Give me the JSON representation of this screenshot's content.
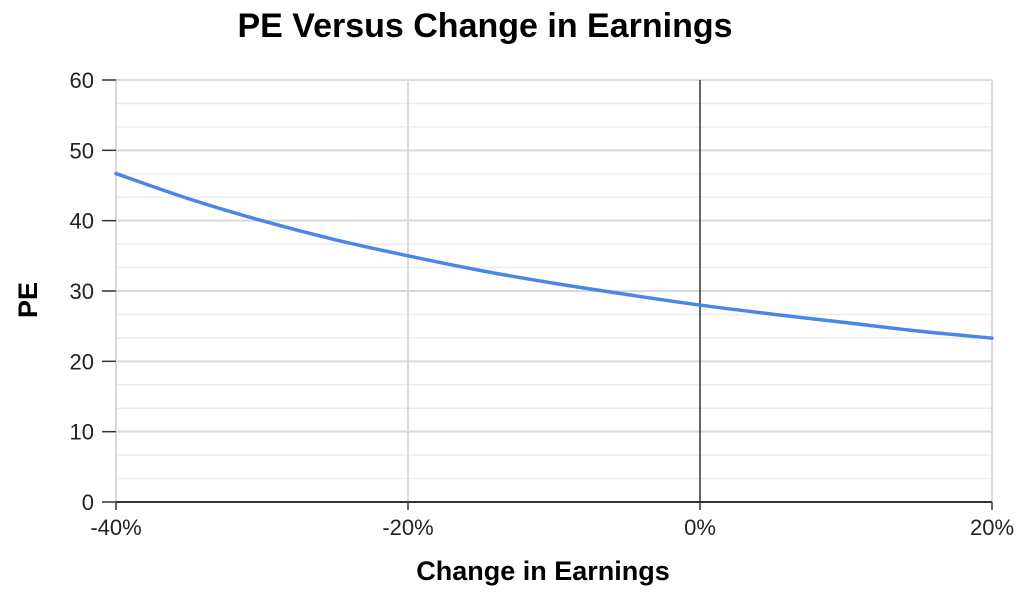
{
  "chart_data": {
    "type": "line",
    "title": "PE Versus Change in Earnings",
    "xlabel": "Change in Earnings",
    "ylabel": "PE",
    "x_ticks": [
      "-40%",
      "-20%",
      "0%",
      "20%"
    ],
    "y_ticks": [
      "0",
      "10",
      "20",
      "30",
      "40",
      "50",
      "60"
    ],
    "xlim": [
      -0.4,
      0.2
    ],
    "ylim": [
      0,
      60
    ],
    "grid": true,
    "series": [
      {
        "x": [
          -0.4,
          -0.35,
          -0.3,
          -0.25,
          -0.2,
          -0.15,
          -0.1,
          -0.05,
          0.0,
          0.05,
          0.1,
          0.15,
          0.2
        ],
        "y": [
          46.7,
          43.1,
          40.0,
          37.3,
          35.0,
          32.9,
          31.1,
          29.5,
          28.0,
          26.7,
          25.5,
          24.3,
          23.3
        ]
      }
    ],
    "colors": {
      "line": "#4a86e8",
      "grid": "#d9d9d9",
      "zero_line": "#333333",
      "axis": "#333333"
    }
  }
}
